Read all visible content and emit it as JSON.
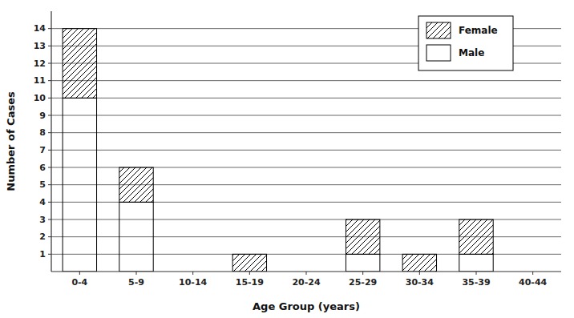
{
  "chart_data": {
    "type": "bar",
    "stacked": true,
    "x_label": "Age Group (years)",
    "y_label": "Number of Cases",
    "categories": [
      "0-4",
      "5-9",
      "10-14",
      "15-19",
      "20-24",
      "25-29",
      "30-34",
      "35-39",
      "40-44"
    ],
    "series": [
      {
        "name": "Male",
        "color": "#ffffff",
        "values": [
          10,
          4,
          0,
          0,
          0,
          1,
          0,
          1,
          0
        ]
      },
      {
        "name": "Female",
        "color": "#ffffff",
        "values": [
          4,
          2,
          0,
          1,
          0,
          2,
          1,
          2,
          0
        ]
      }
    ],
    "ylim": [
      0,
      15
    ],
    "yticks": [
      1,
      2,
      3,
      4,
      5,
      6,
      7,
      8,
      9,
      10,
      11,
      12,
      13,
      14
    ],
    "grid": true,
    "legend": "upper right"
  }
}
